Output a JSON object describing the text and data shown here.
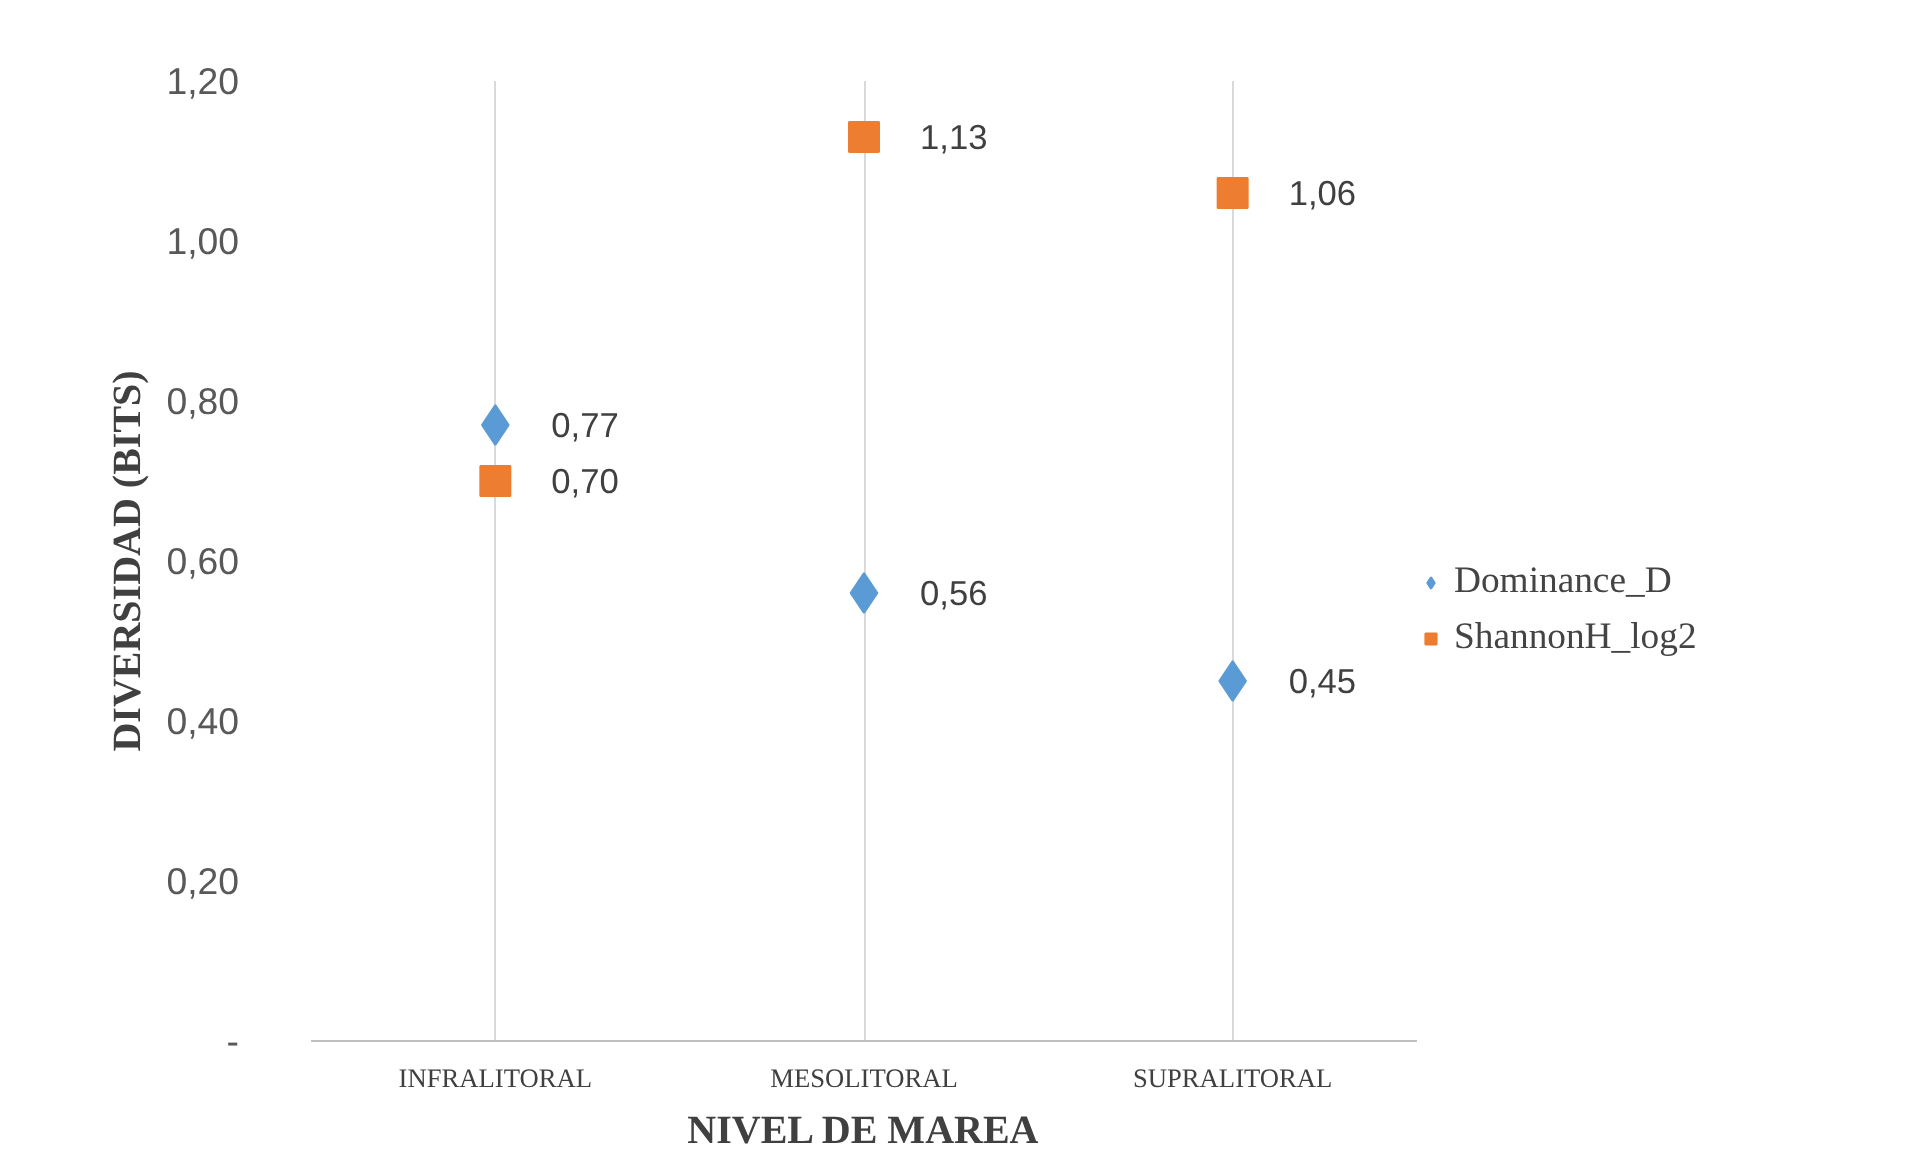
{
  "chart_data": {
    "type": "scatter",
    "xlabel": "NIVEL DE MAREA",
    "ylabel": "DIVERSIDAD (BITS)",
    "categories": [
      "INFRALITORAL",
      "MESOLITORAL",
      "SUPRALITORAL"
    ],
    "series": [
      {
        "name": "Dominance_D",
        "color": "#5b9bd5",
        "marker": "diamond",
        "values": [
          0.77,
          0.56,
          0.45
        ],
        "value_labels": [
          "0,77",
          "0,56",
          "0,45"
        ]
      },
      {
        "name": "ShannonH_log2",
        "color": "#ed7d31",
        "marker": "square",
        "values": [
          0.7,
          1.13,
          1.06
        ],
        "value_labels": [
          "0,70",
          "1,13",
          "1,06"
        ]
      }
    ],
    "ylim": [
      0,
      1.2
    ],
    "yticks": [
      {
        "value": 0,
        "label": "-"
      },
      {
        "value": 0.2,
        "label": "0,20"
      },
      {
        "value": 0.4,
        "label": "0,40"
      },
      {
        "value": 0.6,
        "label": "0,60"
      },
      {
        "value": 0.8,
        "label": "0,80"
      },
      {
        "value": 1.0,
        "label": "1,00"
      },
      {
        "value": 1.2,
        "label": "1,20"
      }
    ],
    "grid": "x",
    "legend": "right"
  }
}
